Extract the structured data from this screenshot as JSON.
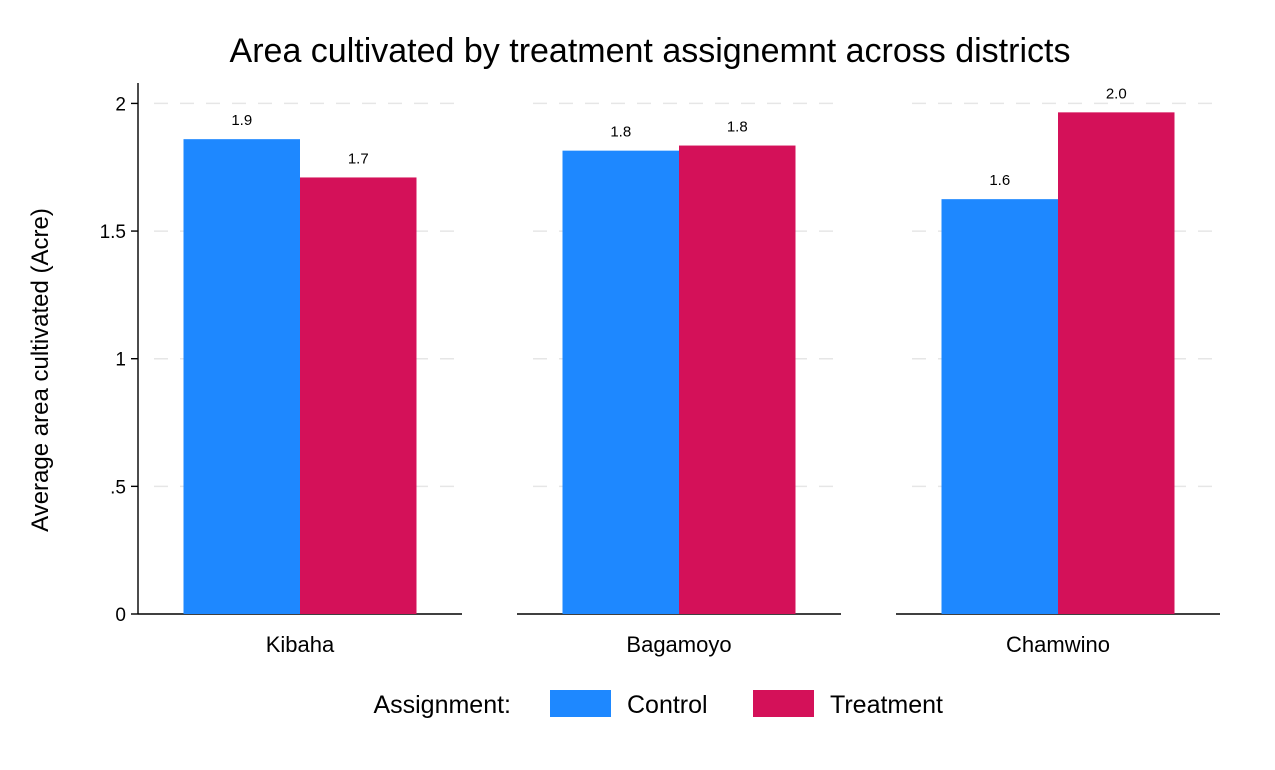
{
  "chart_data": {
    "type": "bar",
    "title": "Area cultivated by treatment assignemnt across districts",
    "xlabel": "",
    "ylabel": "Average area cultivated (Acre)",
    "ylim": [
      0,
      2.08
    ],
    "yticks": [
      {
        "value": 0,
        "label": "0"
      },
      {
        "value": 0.5,
        "label": ".5"
      },
      {
        "value": 1,
        "label": "1"
      },
      {
        "value": 1.5,
        "label": "1.5"
      },
      {
        "value": 2,
        "label": "2"
      }
    ],
    "grid": true,
    "categories": [
      "Kibaha",
      "Bagamoyo",
      "Chamwino"
    ],
    "series": [
      {
        "name": "Control",
        "color": "#1e88ff",
        "values": [
          1.86,
          1.815,
          1.625
        ],
        "labels": [
          "1.9",
          "1.8",
          "1.6"
        ]
      },
      {
        "name": "Treatment",
        "color": "#d41159",
        "values": [
          1.71,
          1.835,
          1.965
        ],
        "labels": [
          "1.7",
          "1.8",
          "2.0"
        ]
      }
    ],
    "legend": {
      "title": "Assignment:",
      "placement": "bottom"
    }
  }
}
